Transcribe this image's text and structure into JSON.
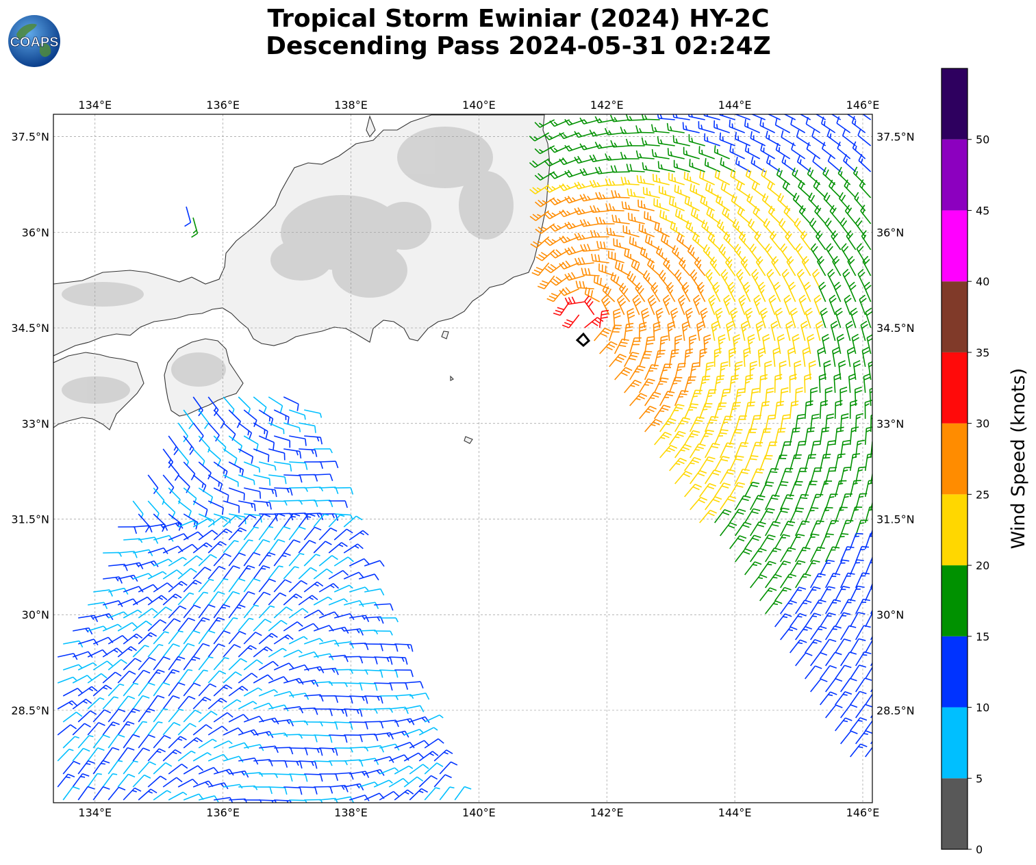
{
  "title": {
    "line1": "Tropical Storm Ewiniar (2024) HY-2C",
    "line2": "Descending Pass 2024-05-31 02:24Z"
  },
  "logo": {
    "text": "COAPS",
    "icon": "globe-logo-icon"
  },
  "map": {
    "lon_range": [
      133.35,
      146.15
    ],
    "lat_range": [
      27.05,
      37.85
    ],
    "lon_ticks": [
      "134°E",
      "136°E",
      "138°E",
      "140°E",
      "142°E",
      "144°E",
      "146°E"
    ],
    "lat_ticks": [
      "28.5°N",
      "30°N",
      "31.5°N",
      "33°N",
      "34.5°N",
      "36°N",
      "37.5°N"
    ],
    "gridlines": true,
    "storm_center": {
      "lon": 141.6,
      "lat": 34.65
    }
  },
  "colorbar": {
    "label": "Wind Speed (knots)",
    "ticks": [
      "0",
      "5",
      "10",
      "15",
      "20",
      "25",
      "30",
      "35",
      "40",
      "45",
      "50"
    ],
    "bins": [
      {
        "min": 0,
        "max": 5,
        "color": "#585858"
      },
      {
        "min": 5,
        "max": 10,
        "color": "#00bfff"
      },
      {
        "min": 10,
        "max": 15,
        "color": "#0033ff"
      },
      {
        "min": 15,
        "max": 20,
        "color": "#009100"
      },
      {
        "min": 20,
        "max": 25,
        "color": "#ffd700"
      },
      {
        "min": 25,
        "max": 30,
        "color": "#ff8c00"
      },
      {
        "min": 30,
        "max": 35,
        "color": "#ff0a0a"
      },
      {
        "min": 35,
        "max": 40,
        "color": "#803a29"
      },
      {
        "min": 40,
        "max": 45,
        "color": "#ff00ff"
      },
      {
        "min": 45,
        "max": 50,
        "color": "#8c00bf"
      },
      {
        "min": 50,
        "max": 55,
        "color": "#2e005f"
      }
    ]
  }
}
